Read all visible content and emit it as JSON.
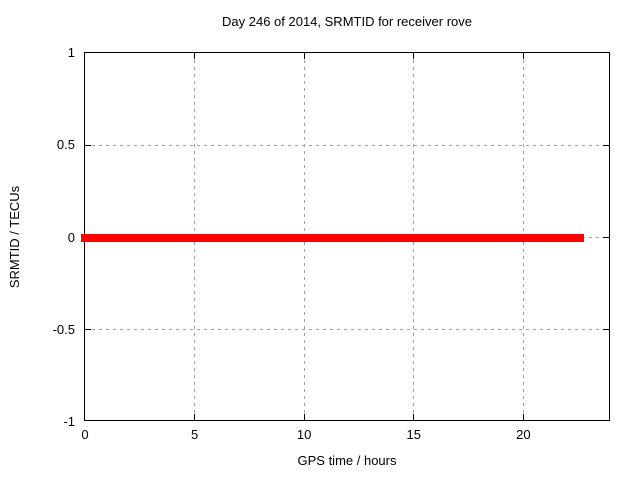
{
  "chart_data": {
    "type": "line",
    "title": "Day 246 of 2014, SRMTID for receiver rove",
    "xlabel": "GPS time / hours",
    "ylabel": "SRMTID / TECUs",
    "xlim": [
      0,
      24
    ],
    "ylim": [
      -1,
      1
    ],
    "xticks": {
      "values": [
        0,
        5,
        10,
        15,
        20
      ],
      "labels": [
        "0",
        "5",
        "10",
        "15",
        "20"
      ]
    },
    "yticks": {
      "values": [
        1,
        0.5,
        0,
        -0.5,
        -1
      ],
      "labels": [
        "1",
        "0.5",
        "0",
        "-0.5",
        "-1"
      ]
    },
    "grid": true,
    "grid_style": "dashed",
    "legend": "none",
    "series": [
      {
        "name": "SRMTID",
        "color": "#ff0000",
        "x": [
          0,
          22.8
        ],
        "y": [
          0,
          0
        ]
      }
    ],
    "colors": {
      "background": "#ffffff",
      "text": "#000000",
      "border": "#000000",
      "grid": "#a0a0a0",
      "line": "#ff0000"
    }
  }
}
